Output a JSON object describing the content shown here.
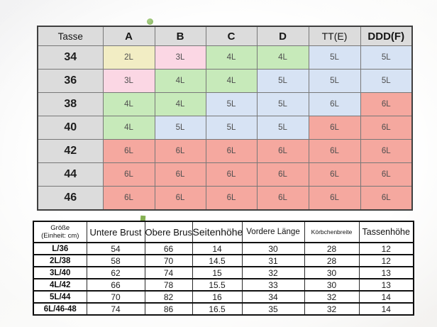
{
  "palette": {
    "yellow": "#f2edc4",
    "pink": "#fbd7e4",
    "green": "#c7eaba",
    "blue": "#d7e3f4",
    "red": "#f5a89f",
    "header_gray": "#dcdcdc"
  },
  "cup_table": {
    "columns": [
      "Tasse",
      "A",
      "B",
      "C",
      "D",
      "TT(E)",
      "DDD(F)"
    ],
    "rows": [
      {
        "label": "34",
        "cells": [
          {
            "v": "2L",
            "c": "yellow"
          },
          {
            "v": "3L",
            "c": "pink"
          },
          {
            "v": "4L",
            "c": "green"
          },
          {
            "v": "4L",
            "c": "green"
          },
          {
            "v": "5L",
            "c": "blue"
          },
          {
            "v": "5L",
            "c": "blue"
          }
        ]
      },
      {
        "label": "36",
        "cells": [
          {
            "v": "3L",
            "c": "pink"
          },
          {
            "v": "4L",
            "c": "green"
          },
          {
            "v": "4L",
            "c": "green"
          },
          {
            "v": "5L",
            "c": "blue"
          },
          {
            "v": "5L",
            "c": "blue"
          },
          {
            "v": "5L",
            "c": "blue"
          }
        ]
      },
      {
        "label": "38",
        "cells": [
          {
            "v": "4L",
            "c": "green"
          },
          {
            "v": "4L",
            "c": "green"
          },
          {
            "v": "5L",
            "c": "blue"
          },
          {
            "v": "5L",
            "c": "blue"
          },
          {
            "v": "6L",
            "c": "blue"
          },
          {
            "v": "6L",
            "c": "red"
          }
        ]
      },
      {
        "label": "40",
        "cells": [
          {
            "v": "4L",
            "c": "green"
          },
          {
            "v": "5L",
            "c": "blue"
          },
          {
            "v": "5L",
            "c": "blue"
          },
          {
            "v": "5L",
            "c": "blue"
          },
          {
            "v": "6L",
            "c": "red"
          },
          {
            "v": "6L",
            "c": "red"
          }
        ]
      },
      {
        "label": "42",
        "cells": [
          {
            "v": "6L",
            "c": "red"
          },
          {
            "v": "6L",
            "c": "red"
          },
          {
            "v": "6L",
            "c": "red"
          },
          {
            "v": "6L",
            "c": "red"
          },
          {
            "v": "6L",
            "c": "red"
          },
          {
            "v": "6L",
            "c": "red"
          }
        ]
      },
      {
        "label": "44",
        "cells": [
          {
            "v": "6L",
            "c": "red"
          },
          {
            "v": "6L",
            "c": "red"
          },
          {
            "v": "6L",
            "c": "red"
          },
          {
            "v": "6L",
            "c": "red"
          },
          {
            "v": "6L",
            "c": "red"
          },
          {
            "v": "6L",
            "c": "red"
          }
        ]
      },
      {
        "label": "46",
        "cells": [
          {
            "v": "6L",
            "c": "red"
          },
          {
            "v": "6L",
            "c": "red"
          },
          {
            "v": "6L",
            "c": "red"
          },
          {
            "v": "6L",
            "c": "red"
          },
          {
            "v": "6L",
            "c": "red"
          },
          {
            "v": "6L",
            "c": "red"
          }
        ]
      }
    ]
  },
  "size_table": {
    "header": {
      "line1": "Größe",
      "line2": "(Einheit: cm)"
    },
    "columns": [
      "Untere Brust",
      "Obere Brust",
      "Seitenhöhe",
      "Vordere Länge",
      "Körbchenbreite",
      "Tassenhöhe"
    ],
    "rows": [
      {
        "size": "L/36",
        "values": [
          "54",
          "66",
          "14",
          "30",
          "28",
          "12"
        ]
      },
      {
        "size": "2L/38",
        "values": [
          "58",
          "70",
          "14.5",
          "31",
          "28",
          "12"
        ]
      },
      {
        "size": "3L/40",
        "values": [
          "62",
          "74",
          "15",
          "32",
          "30",
          "13"
        ]
      },
      {
        "size": "4L/42",
        "values": [
          "66",
          "78",
          "15.5",
          "33",
          "30",
          "13"
        ]
      },
      {
        "size": "5L/44",
        "values": [
          "70",
          "82",
          "16",
          "34",
          "32",
          "14"
        ]
      },
      {
        "size": "6L/46-48",
        "values": [
          "74",
          "86",
          "16.5",
          "35",
          "32",
          "14"
        ]
      }
    ]
  },
  "decorations": [
    "green-dot",
    "white-flower",
    "white-flower-faint",
    "green-square",
    "pink-blob"
  ],
  "chart_data": [
    {
      "type": "table",
      "columns": [
        "Tasse",
        "A",
        "B",
        "C",
        "D",
        "TT(E)",
        "DDD(F)"
      ],
      "rows": [
        [
          "34",
          "2L",
          "3L",
          "4L",
          "4L",
          "5L",
          "5L"
        ],
        [
          "36",
          "3L",
          "4L",
          "4L",
          "5L",
          "5L",
          "5L"
        ],
        [
          "38",
          "4L",
          "4L",
          "5L",
          "5L",
          "6L",
          "6L"
        ],
        [
          "40",
          "4L",
          "5L",
          "5L",
          "5L",
          "6L",
          "6L"
        ],
        [
          "42",
          "6L",
          "6L",
          "6L",
          "6L",
          "6L",
          "6L"
        ],
        [
          "44",
          "6L",
          "6L",
          "6L",
          "6L",
          "6L",
          "6L"
        ],
        [
          "46",
          "6L",
          "6L",
          "6L",
          "6L",
          "6L",
          "6L"
        ]
      ],
      "cell_color_legend": {
        "yellow": "#f2edc4",
        "pink": "#fbd7e4",
        "green": "#c7eaba",
        "blue": "#d7e3f4",
        "red": "#f5a89f"
      }
    },
    {
      "type": "table",
      "columns": [
        "Größe (Einheit: cm)",
        "Untere Brust",
        "Obere Brust",
        "Seitenhöhe",
        "Vordere Länge",
        "Körbchenbreite",
        "Tassenhöhe"
      ],
      "rows": [
        [
          "L/36",
          "54",
          "66",
          "14",
          "30",
          "28",
          "12"
        ],
        [
          "2L/38",
          "58",
          "70",
          "14.5",
          "31",
          "28",
          "12"
        ],
        [
          "3L/40",
          "62",
          "74",
          "15",
          "32",
          "30",
          "13"
        ],
        [
          "4L/42",
          "66",
          "78",
          "15.5",
          "33",
          "30",
          "13"
        ],
        [
          "5L/44",
          "70",
          "82",
          "16",
          "34",
          "32",
          "14"
        ],
        [
          "6L/46-48",
          "74",
          "86",
          "16.5",
          "35",
          "32",
          "14"
        ]
      ]
    }
  ]
}
